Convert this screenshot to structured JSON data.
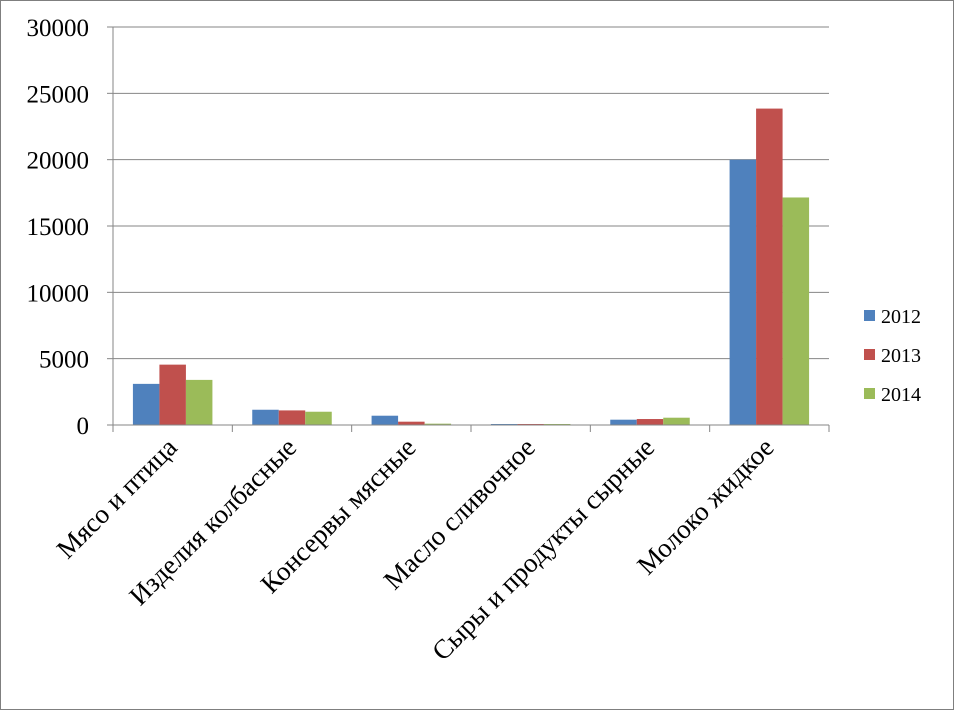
{
  "chart_data": {
    "type": "bar",
    "title": "",
    "xlabel": "",
    "ylabel": "",
    "ylim": [
      0,
      30000
    ],
    "yticks": [
      0,
      5000,
      10000,
      15000,
      20000,
      25000,
      30000
    ],
    "yticks_labels": [
      "0",
      "5000",
      "10000",
      "15000",
      "20000",
      "25000",
      "30000"
    ],
    "grid": true,
    "legend_position": "right",
    "categories": [
      "Мясо и птица",
      "Изделия колбасные",
      "Консервы мясные",
      "Масло сливочное",
      "Сыры и продукты сырные",
      "Молоко жидкое"
    ],
    "series": [
      {
        "name": "2012",
        "color": "#4f81bd",
        "values": [
          3100,
          1150,
          700,
          50,
          400,
          20000
        ]
      },
      {
        "name": "2013",
        "color": "#c0504d",
        "values": [
          4550,
          1100,
          250,
          50,
          450,
          23850
        ]
      },
      {
        "name": "2014",
        "color": "#9bbb59",
        "values": [
          3400,
          1000,
          100,
          50,
          550,
          17150
        ]
      }
    ]
  }
}
